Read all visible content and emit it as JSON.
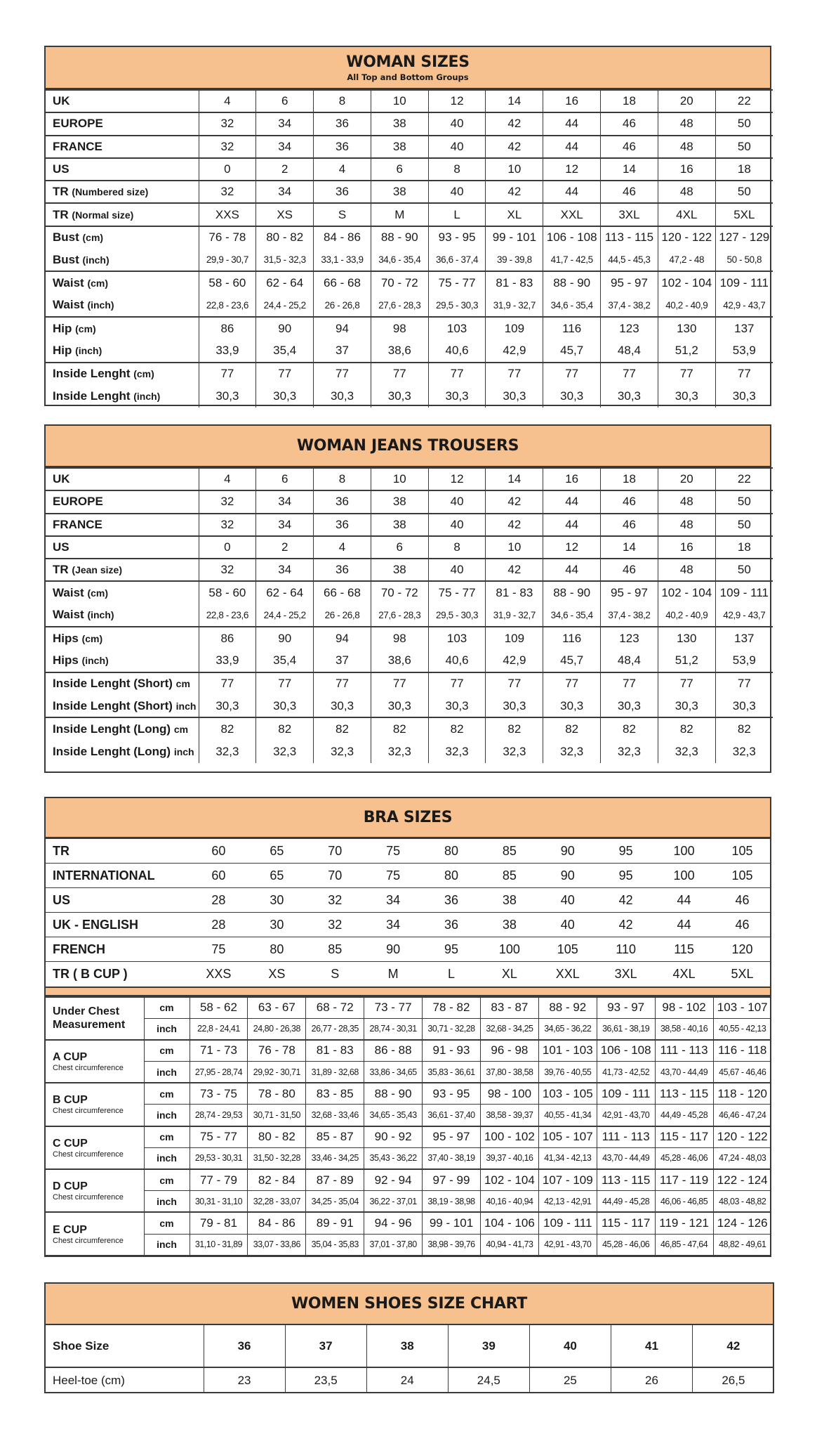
{
  "colors": {
    "header_bg": "#f7c08f",
    "border": "#3a3a3a"
  },
  "woman_sizes": {
    "title": "WOMAN SIZES",
    "subtitle": "All Top and Bottom Groups",
    "groups": [
      [
        {
          "label": "UK",
          "unit": "",
          "values": [
            "4",
            "6",
            "8",
            "10",
            "12",
            "14",
            "16",
            "18",
            "20",
            "22"
          ]
        }
      ],
      [
        {
          "label": "EUROPE",
          "unit": "",
          "values": [
            "32",
            "34",
            "36",
            "38",
            "40",
            "42",
            "44",
            "46",
            "48",
            "50"
          ]
        }
      ],
      [
        {
          "label": "FRANCE",
          "unit": "",
          "values": [
            "32",
            "34",
            "36",
            "38",
            "40",
            "42",
            "44",
            "46",
            "48",
            "50"
          ]
        }
      ],
      [
        {
          "label": "US",
          "unit": "",
          "values": [
            "0",
            "2",
            "4",
            "6",
            "8",
            "10",
            "12",
            "14",
            "16",
            "18"
          ]
        }
      ],
      [
        {
          "label": "TR",
          "unit": "(Numbered size)",
          "values": [
            "32",
            "34",
            "36",
            "38",
            "40",
            "42",
            "44",
            "46",
            "48",
            "50"
          ]
        }
      ],
      [
        {
          "label": "TR",
          "unit": "(Normal size)",
          "values": [
            "XXS",
            "XS",
            "S",
            "M",
            "L",
            "XL",
            "XXL",
            "3XL",
            "4XL",
            "5XL"
          ]
        }
      ],
      [
        {
          "label": "Bust",
          "unit": "(cm)",
          "values": [
            "76 - 78",
            "80 - 82",
            "84 - 86",
            "88 - 90",
            "93 - 95",
            "99 - 101",
            "106 - 108",
            "113 - 115",
            "120 - 122",
            "127 - 129"
          ]
        },
        {
          "label": "Bust",
          "unit": "(inch)",
          "small": true,
          "values": [
            "29,9 - 30,7",
            "31,5 - 32,3",
            "33,1 - 33,9",
            "34,6 - 35,4",
            "36,6  - 37,4",
            "39 - 39,8",
            "41,7 - 42,5",
            "44,5 - 45,3",
            "47,2 - 48",
            "50 - 50,8"
          ]
        }
      ],
      [
        {
          "label": "Waist",
          "unit": "(cm)",
          "values": [
            "58 - 60",
            "62 - 64",
            "66 - 68",
            "70 - 72",
            "75 - 77",
            "81 - 83",
            "88 - 90",
            "95 - 97",
            "102 - 104",
            "109 - 111"
          ]
        },
        {
          "label": "Waist",
          "unit": "(inch)",
          "small": true,
          "values": [
            "22,8 - 23,6",
            "24,4 - 25,2",
            "26 - 26,8",
            "27,6 - 28,3",
            "29,5  - 30,3",
            "31,9 - 32,7",
            "34,6 - 35,4",
            "37,4 - 38,2",
            "40,2 - 40,9",
            "42,9 - 43,7"
          ]
        }
      ],
      [
        {
          "label": "Hip",
          "unit": "(cm)",
          "values": [
            "86",
            "90",
            "94",
            "98",
            "103",
            "109",
            "116",
            "123",
            "130",
            "137"
          ]
        },
        {
          "label": "Hip",
          "unit": "(inch)",
          "values": [
            "33,9",
            "35,4",
            "37",
            "38,6",
            "40,6",
            "42,9",
            "45,7",
            "48,4",
            "51,2",
            "53,9"
          ]
        }
      ],
      [
        {
          "label": "Inside Lenght",
          "unit": "(cm)",
          "values": [
            "77",
            "77",
            "77",
            "77",
            "77",
            "77",
            "77",
            "77",
            "77",
            "77"
          ]
        },
        {
          "label": "Inside Lenght",
          "unit": "(inch)",
          "values": [
            "30,3",
            "30,3",
            "30,3",
            "30,3",
            "30,3",
            "30,3",
            "30,3",
            "30,3",
            "30,3",
            "30,3"
          ]
        }
      ]
    ]
  },
  "jeans": {
    "title": "WOMAN JEANS TROUSERS",
    "groups": [
      [
        {
          "label": "UK",
          "unit": "",
          "values": [
            "4",
            "6",
            "8",
            "10",
            "12",
            "14",
            "16",
            "18",
            "20",
            "22"
          ]
        }
      ],
      [
        {
          "label": "EUROPE",
          "unit": "",
          "values": [
            "32",
            "34",
            "36",
            "38",
            "40",
            "42",
            "44",
            "46",
            "48",
            "50"
          ]
        }
      ],
      [
        {
          "label": "FRANCE",
          "unit": "",
          "values": [
            "32",
            "34",
            "36",
            "38",
            "40",
            "42",
            "44",
            "46",
            "48",
            "50"
          ]
        }
      ],
      [
        {
          "label": "US",
          "unit": "",
          "values": [
            "0",
            "2",
            "4",
            "6",
            "8",
            "10",
            "12",
            "14",
            "16",
            "18"
          ]
        }
      ],
      [
        {
          "label": "TR",
          "unit": "(Jean size)",
          "values": [
            "32",
            "34",
            "36",
            "38",
            "40",
            "42",
            "44",
            "46",
            "48",
            "50"
          ]
        }
      ],
      [
        {
          "label": "Waist",
          "unit": "(cm)",
          "values": [
            "58 - 60",
            "62 - 64",
            "66 - 68",
            "70 - 72",
            "75 - 77",
            "81 - 83",
            "88 - 90",
            "95 - 97",
            "102 - 104",
            "109 - 111"
          ]
        },
        {
          "label": "Waist",
          "unit": "(inch)",
          "small": true,
          "values": [
            "22,8 - 23,6",
            "24,4 - 25,2",
            "26 - 26,8",
            "27,6 - 28,3",
            "29,5  - 30,3",
            "31,9 - 32,7",
            "34,6 - 35,4",
            "37,4 - 38,2",
            "40,2 - 40,9",
            "42,9 - 43,7"
          ]
        }
      ],
      [
        {
          "label": "Hips",
          "unit": "(cm)",
          "values": [
            "86",
            "90",
            "94",
            "98",
            "103",
            "109",
            "116",
            "123",
            "130",
            "137"
          ]
        },
        {
          "label": "Hips",
          "unit": "(inch)",
          "values": [
            "33,9",
            "35,4",
            "37",
            "38,6",
            "40,6",
            "42,9",
            "45,7",
            "48,4",
            "51,2",
            "53,9"
          ]
        }
      ],
      [
        {
          "label": "Inside Lenght (Short)",
          "unit": "cm",
          "values": [
            "77",
            "77",
            "77",
            "77",
            "77",
            "77",
            "77",
            "77",
            "77",
            "77"
          ]
        },
        {
          "label": "Inside Lenght (Short)",
          "unit": "inch",
          "values": [
            "30,3",
            "30,3",
            "30,3",
            "30,3",
            "30,3",
            "30,3",
            "30,3",
            "30,3",
            "30,3",
            "30,3"
          ]
        }
      ],
      [
        {
          "label": "Inside Lenght (Long)",
          "unit": "cm",
          "values": [
            "82",
            "82",
            "82",
            "82",
            "82",
            "82",
            "82",
            "82",
            "82",
            "82"
          ]
        },
        {
          "label": "Inside Lenght (Long)",
          "unit": "inch",
          "values": [
            "32,3",
            "32,3",
            "32,3",
            "32,3",
            "32,3",
            "32,3",
            "32,3",
            "32,3",
            "32,3",
            "32,3"
          ]
        }
      ]
    ]
  },
  "bra": {
    "title": "BRA SIZES",
    "top_rows": [
      {
        "label": "TR",
        "values": [
          "60",
          "65",
          "70",
          "75",
          "80",
          "85",
          "90",
          "95",
          "100",
          "105"
        ]
      },
      {
        "label": "INTERNATIONAL",
        "values": [
          "60",
          "65",
          "70",
          "75",
          "80",
          "85",
          "90",
          "95",
          "100",
          "105"
        ]
      },
      {
        "label": "US",
        "values": [
          "28",
          "30",
          "32",
          "34",
          "36",
          "38",
          "40",
          "42",
          "44",
          "46"
        ]
      },
      {
        "label": "UK - ENGLISH",
        "values": [
          "28",
          "30",
          "32",
          "34",
          "36",
          "38",
          "40",
          "42",
          "44",
          "46"
        ]
      },
      {
        "label": "FRENCH",
        "values": [
          "75",
          "80",
          "85",
          "90",
          "95",
          "100",
          "105",
          "110",
          "115",
          "120"
        ]
      },
      {
        "label": "TR ( B CUP )",
        "values": [
          "XXS",
          "XS",
          "S",
          "M",
          "L",
          "XL",
          "XXL",
          "3XL",
          "4XL",
          "5XL"
        ]
      }
    ],
    "groups": [
      {
        "label": "Under Chest Measurement",
        "sublabel": "",
        "rows": [
          {
            "unit": "cm",
            "values": [
              "58 - 62",
              "63 - 67",
              "68 - 72",
              "73 - 77",
              "78 - 82",
              "83 - 87",
              "88 - 92",
              "93 - 97",
              "98 - 102",
              "103 - 107"
            ]
          },
          {
            "unit": "inch",
            "values": [
              "22,8 - 24,41",
              "24,80 - 26,38",
              "26,77 - 28,35",
              "28,74 - 30,31",
              "30,71 - 32,28",
              "32,68 - 34,25",
              "34,65 - 36,22",
              "36,61 - 38,19",
              "38,58 - 40,16",
              "40,55 - 42,13"
            ]
          }
        ]
      },
      {
        "label": "A CUP",
        "sublabel": "Chest circumference",
        "rows": [
          {
            "unit": "cm",
            "values": [
              "71 - 73",
              "76 - 78",
              "81 - 83",
              "86 - 88",
              "91 - 93",
              "96 - 98",
              "101 - 103",
              "106 - 108",
              "111 - 113",
              "116 - 118"
            ]
          },
          {
            "unit": "inch",
            "values": [
              "27,95 - 28,74",
              "29,92 - 30,71",
              "31,89 - 32,68",
              "33,86 - 34,65",
              "35,83 - 36,61",
              "37,80 - 38,58",
              "39,76 - 40,55",
              "41,73 - 42,52",
              "43,70 - 44,49",
              "45,67 - 46,46"
            ]
          }
        ]
      },
      {
        "label": "B CUP",
        "sublabel": "Chest circumference",
        "rows": [
          {
            "unit": "cm",
            "values": [
              "73 - 75",
              "78 - 80",
              "83 - 85",
              "88 - 90",
              "93 - 95",
              "98 - 100",
              "103 - 105",
              "109 - 111",
              "113 - 115",
              "118 - 120"
            ]
          },
          {
            "unit": "inch",
            "values": [
              "28,74 - 29,53",
              "30,71 - 31,50",
              "32,68 - 33,46",
              "34,65 - 35,43",
              "36,61 - 37,40",
              "38,58 - 39,37",
              "40,55 - 41,34",
              "42,91 - 43,70",
              "44,49 - 45,28",
              "46,46 - 47,24"
            ]
          }
        ]
      },
      {
        "label": "C CUP",
        "sublabel": "Chest circumference",
        "rows": [
          {
            "unit": "cm",
            "values": [
              "75 - 77",
              "80 - 82",
              "85 - 87",
              "90 - 92",
              "95 - 97",
              "100 - 102",
              "105 - 107",
              "111 - 113",
              "115 - 117",
              "120 - 122"
            ]
          },
          {
            "unit": "inch",
            "values": [
              "29,53 - 30,31",
              "31,50 - 32,28",
              "33,46 - 34,25",
              "35,43 - 36,22",
              "37,40 - 38,19",
              "39,37 - 40,16",
              "41,34 - 42,13",
              "43,70 - 44,49",
              "45,28 - 46,06",
              "47,24 - 48,03"
            ]
          }
        ]
      },
      {
        "label": "D CUP",
        "sublabel": "Chest circumference",
        "rows": [
          {
            "unit": "cm",
            "values": [
              "77 - 79",
              "82 - 84",
              "87 - 89",
              "92 - 94",
              "97 - 99",
              "102 - 104",
              "107 - 109",
              "113 - 115",
              "117 - 119",
              "122 - 124"
            ]
          },
          {
            "unit": "inch",
            "values": [
              "30,31 - 31,10",
              "32,28 - 33,07",
              "34,25 - 35,04",
              "36,22 - 37,01",
              "38,19 - 38,98",
              "40,16 - 40,94",
              "42,13 - 42,91",
              "44,49 - 45,28",
              "46,06 - 46,85",
              "48,03 - 48,82"
            ]
          }
        ]
      },
      {
        "label": "E CUP",
        "sublabel": "Chest circumference",
        "rows": [
          {
            "unit": "cm",
            "values": [
              "79 - 81",
              "84 - 86",
              "89 - 91",
              "94 - 96",
              "99 - 101",
              "104 - 106",
              "109 - 111",
              "115 - 117",
              "119 - 121",
              "124 - 126"
            ]
          },
          {
            "unit": "inch",
            "values": [
              "31,10 - 31,89",
              "33,07 - 33,86",
              "35,04 - 35,83",
              "37,01 - 37,80",
              "38,98 - 39,76",
              "40,94 - 41,73",
              "42,91 - 43,70",
              "45,28 - 46,06",
              "46,85 - 47,64",
              "48,82 - 49,61"
            ]
          }
        ]
      }
    ]
  },
  "shoes": {
    "title": "WOMEN SHOES SIZE CHART",
    "rows": [
      {
        "label": "Shoe Size",
        "values": [
          "36",
          "37",
          "38",
          "39",
          "40",
          "41",
          "42"
        ]
      },
      {
        "label": "Heel-toe (cm)",
        "values": [
          "23",
          "23,5",
          "24",
          "24,5",
          "25",
          "26",
          "26,5"
        ]
      }
    ]
  }
}
